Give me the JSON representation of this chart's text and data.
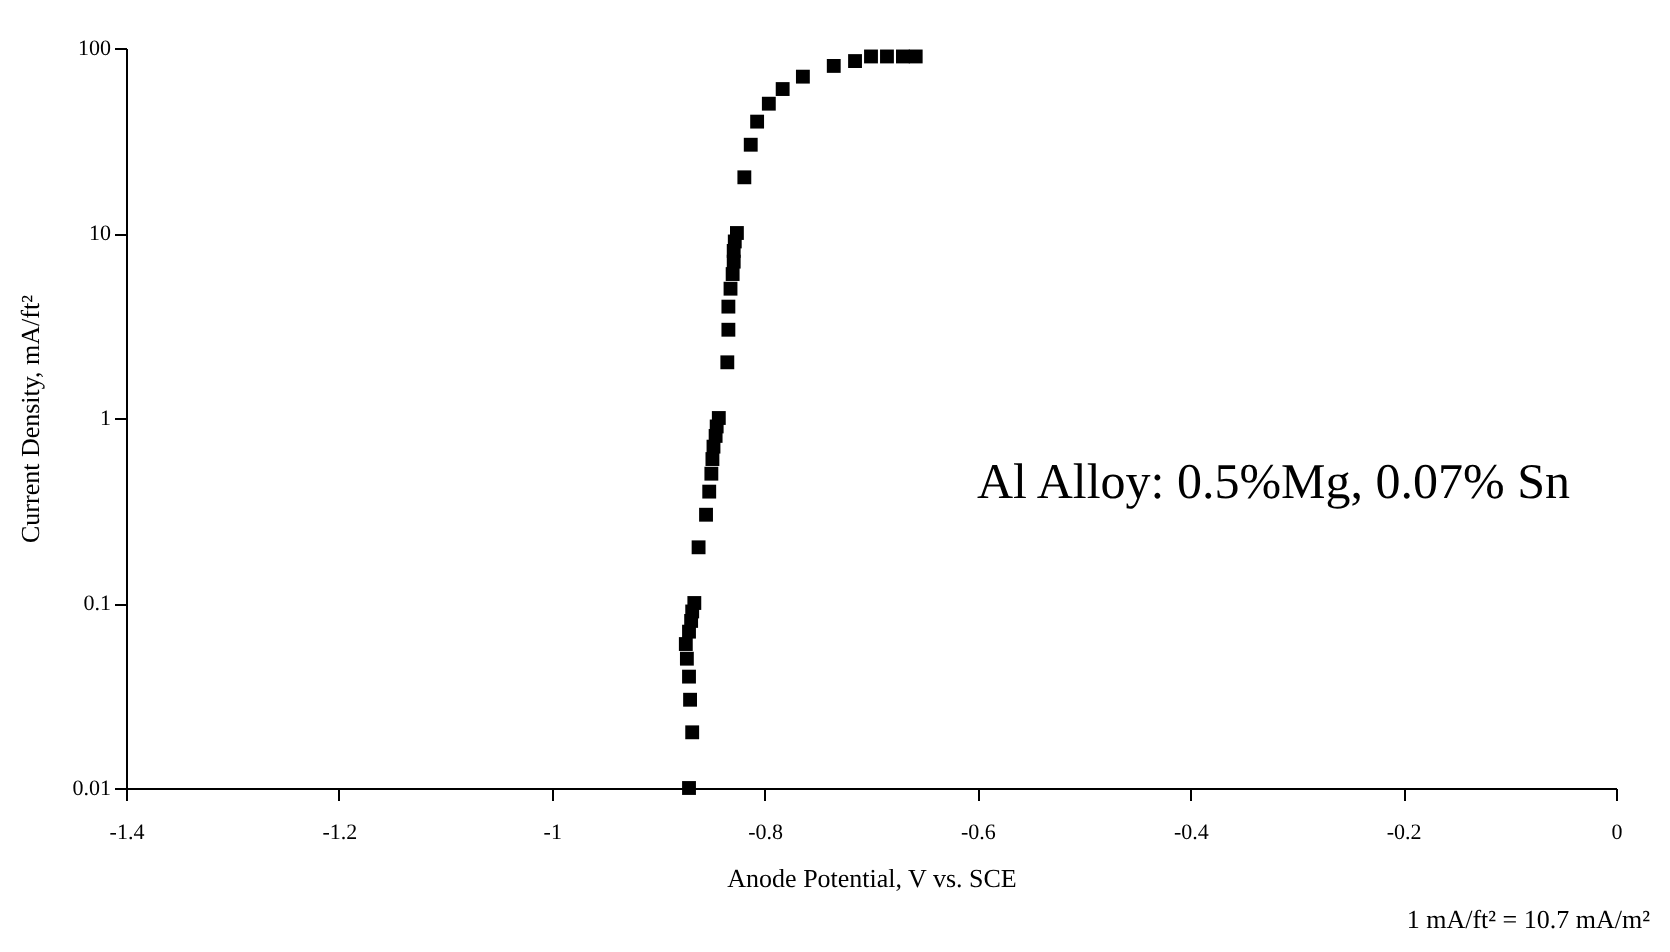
{
  "chart_data": {
    "type": "scatter",
    "xlabel": "Anode Potential, V vs. SCE",
    "ylabel": "Current Density, mA/ft²",
    "annotations": [
      "Al Alloy: 0.5%Mg, 0.07% Sn",
      "1 mA/ft² = 10.7 mA/m²"
    ],
    "log": "y",
    "marker": "square",
    "grid": false,
    "xlim": [
      -1.4,
      0
    ],
    "xticks": [
      -1.4,
      -1.2,
      -1,
      -0.8,
      -0.6,
      -0.4,
      -0.2,
      0
    ],
    "ylim": [
      0.01,
      100
    ],
    "yticks": [
      0.01,
      0.1,
      1,
      10,
      100
    ],
    "series": [
      {
        "color": "#000000",
        "x": [
          -0.871,
          -0.868,
          -0.87,
          -0.871,
          -0.873,
          -0.874,
          -0.871,
          -0.869,
          -0.868,
          -0.866,
          -0.862,
          -0.855,
          -0.852,
          -0.85,
          -0.849,
          -0.848,
          -0.846,
          -0.845,
          -0.843,
          -0.835,
          -0.834,
          -0.834,
          -0.832,
          -0.83,
          -0.829,
          -0.829,
          -0.828,
          -0.826,
          -0.819,
          -0.813,
          -0.807,
          -0.796,
          -0.783,
          -0.764,
          -0.735,
          -0.715,
          -0.7,
          -0.685,
          -0.67,
          -0.658
        ],
        "values": [
          0.01,
          0.02,
          0.03,
          0.04,
          0.05,
          0.06,
          0.07,
          0.08,
          0.09,
          0.1,
          0.2,
          0.3,
          0.4,
          0.5,
          0.6,
          0.7,
          0.8,
          0.9,
          1,
          2,
          3,
          4,
          5,
          6,
          7,
          8,
          9,
          10,
          20,
          30,
          40,
          50,
          60,
          70,
          80,
          85,
          90,
          90,
          90,
          90
        ]
      }
    ]
  }
}
